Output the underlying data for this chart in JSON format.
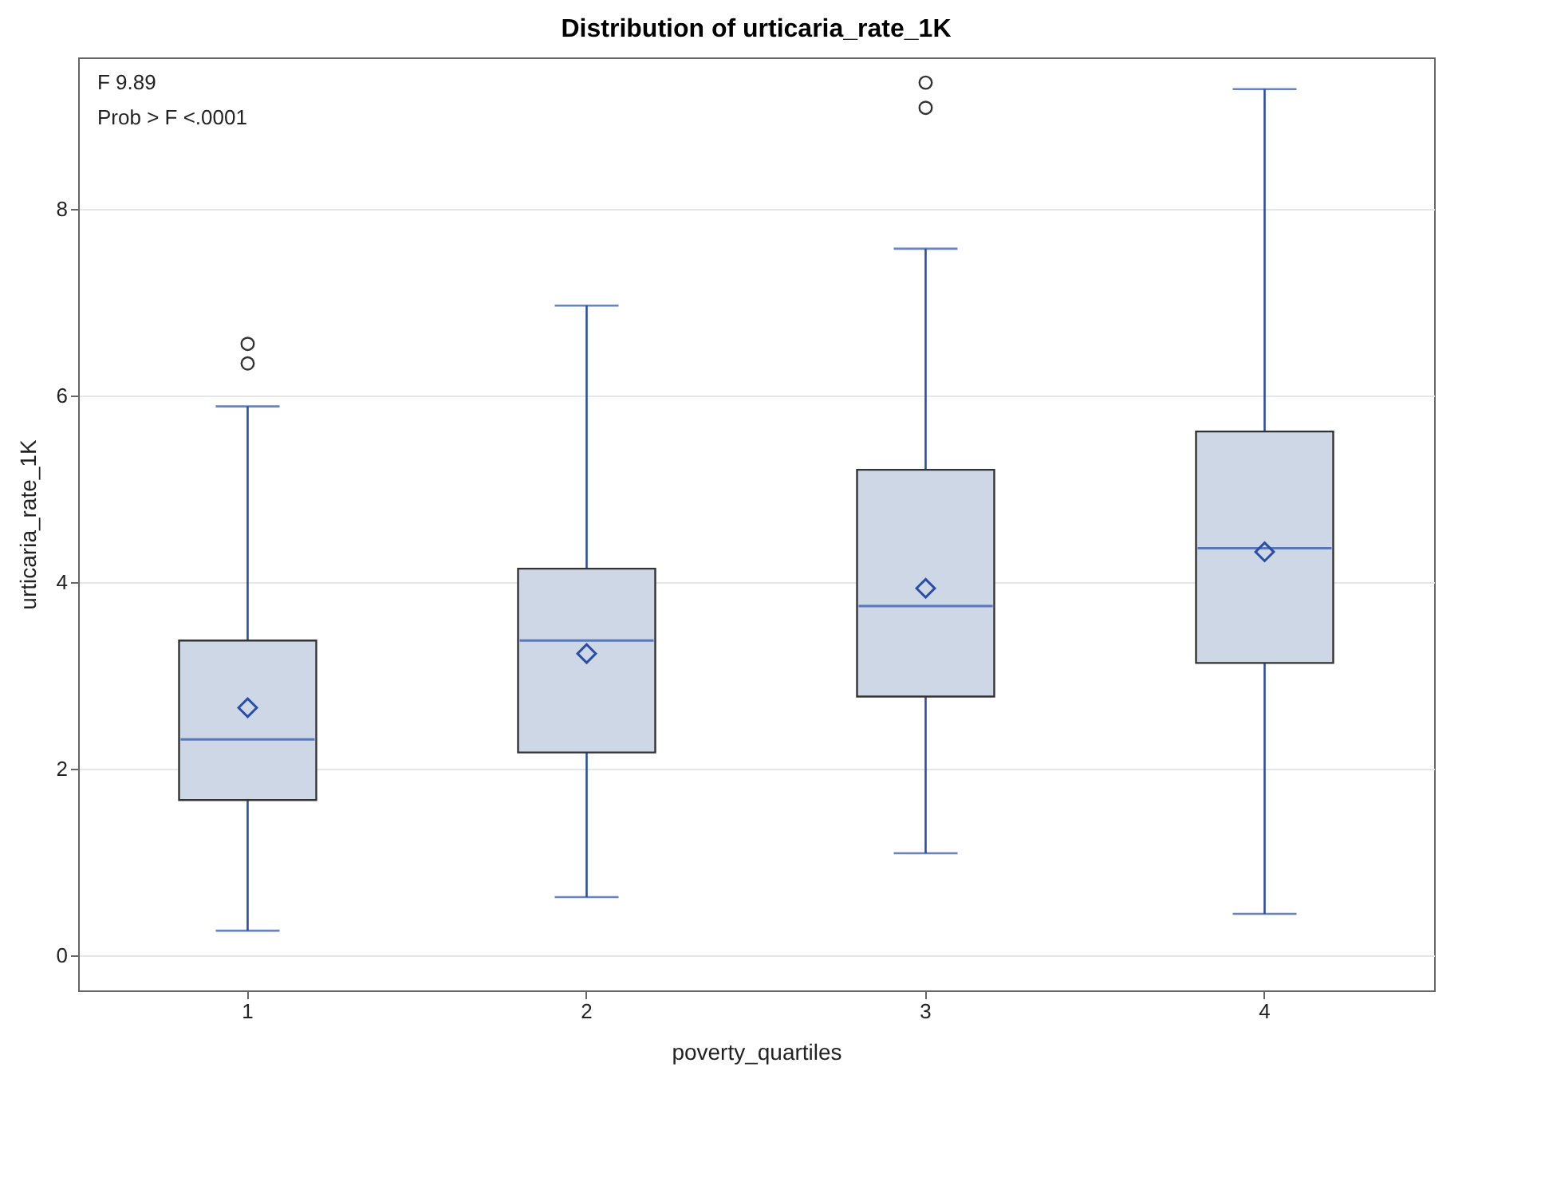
{
  "chart_data": {
    "type": "box",
    "title": "Distribution of urticaria_rate_1K",
    "xlabel": "poverty_quartiles",
    "ylabel": "urticaria_rate_1K",
    "categories": [
      "1",
      "2",
      "3",
      "4"
    ],
    "series": [
      {
        "color": "#cdd7e6",
        "boxes": [
          {
            "low": 0.26,
            "q1": 1.66,
            "median": 2.31,
            "q3": 3.37,
            "high": 5.88,
            "mean": 2.65,
            "outliers": [
              6.34,
              6.55
            ]
          },
          {
            "low": 0.62,
            "q1": 2.17,
            "median": 3.37,
            "q3": 4.14,
            "high": 6.96,
            "mean": 3.23
          },
          {
            "low": 1.09,
            "q1": 2.77,
            "median": 3.74,
            "q3": 5.2,
            "high": 7.57,
            "mean": 3.93,
            "outliers": [
              9.08,
              9.35
            ]
          },
          {
            "low": 0.44,
            "q1": 3.13,
            "median": 4.36,
            "q3": 5.61,
            "high": 9.28,
            "mean": 4.32
          }
        ]
      }
    ],
    "ylim": [
      -0.38,
      9.62
    ],
    "yticks": [
      0,
      2,
      4,
      6,
      8
    ],
    "grid": "y",
    "annotations": [
      "F 9.89",
      "Prob > F <.0001"
    ]
  }
}
